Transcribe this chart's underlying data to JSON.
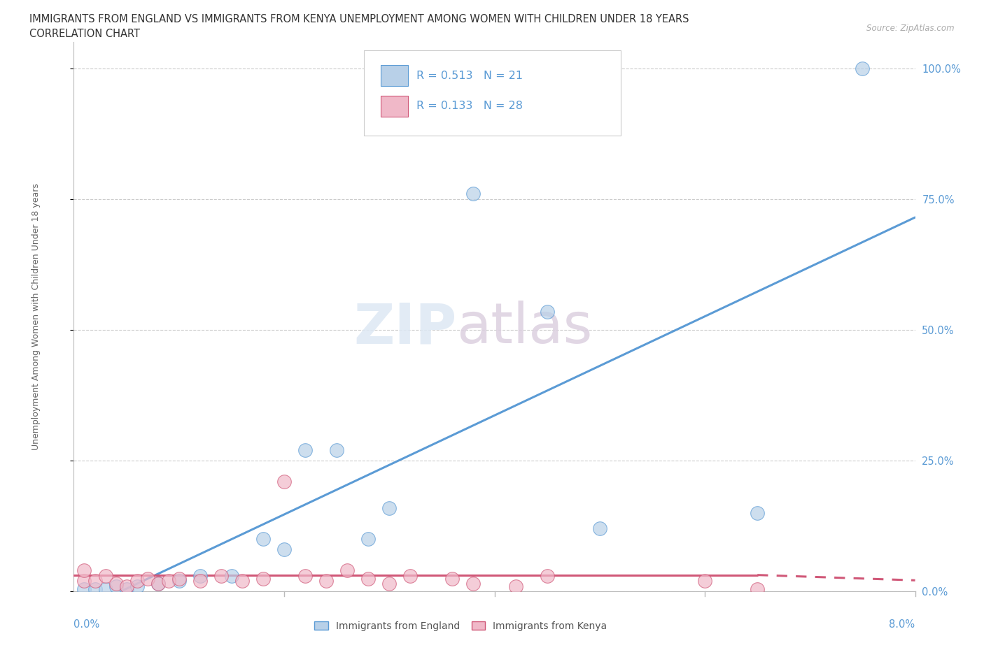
{
  "title_line1": "IMMIGRANTS FROM ENGLAND VS IMMIGRANTS FROM KENYA UNEMPLOYMENT AMONG WOMEN WITH CHILDREN UNDER 18 YEARS",
  "title_line2": "CORRELATION CHART",
  "source": "Source: ZipAtlas.com",
  "ylabel": "Unemployment Among Women with Children Under 18 years",
  "legend_label1": "Immigrants from England",
  "legend_label2": "Immigrants from Kenya",
  "R1": 0.513,
  "N1": 21,
  "R2": 0.133,
  "N2": 28,
  "color_england": "#b8d0e8",
  "color_kenya": "#f0b8c8",
  "color_england_line": "#5b9bd5",
  "color_kenya_line": "#d05878",
  "watermark_zip": "ZIP",
  "watermark_atlas": "atlas",
  "england_x": [
    0.001,
    0.002,
    0.003,
    0.004,
    0.005,
    0.006,
    0.008,
    0.01,
    0.012,
    0.015,
    0.018,
    0.02,
    0.022,
    0.025,
    0.028,
    0.03,
    0.038,
    0.045,
    0.05,
    0.065,
    0.075
  ],
  "england_y": [
    0.005,
    0.005,
    0.005,
    0.01,
    0.005,
    0.01,
    0.015,
    0.02,
    0.03,
    0.03,
    0.1,
    0.08,
    0.27,
    0.27,
    0.1,
    0.16,
    0.76,
    0.535,
    0.12,
    0.15,
    1.0
  ],
  "kenya_x": [
    0.001,
    0.001,
    0.002,
    0.003,
    0.004,
    0.005,
    0.006,
    0.007,
    0.008,
    0.009,
    0.01,
    0.012,
    0.014,
    0.016,
    0.018,
    0.02,
    0.022,
    0.024,
    0.026,
    0.028,
    0.03,
    0.032,
    0.036,
    0.038,
    0.042,
    0.045,
    0.06,
    0.065
  ],
  "kenya_y": [
    0.02,
    0.04,
    0.02,
    0.03,
    0.015,
    0.01,
    0.02,
    0.025,
    0.015,
    0.02,
    0.025,
    0.02,
    0.03,
    0.02,
    0.025,
    0.21,
    0.03,
    0.02,
    0.04,
    0.025,
    0.015,
    0.03,
    0.025,
    0.015,
    0.01,
    0.03,
    0.02,
    0.005
  ],
  "xmin": 0.0,
  "xmax": 0.08,
  "ymin": 0.0,
  "ymax": 1.05,
  "yticks": [
    0.0,
    0.25,
    0.5,
    0.75,
    1.0
  ],
  "ytick_labels": [
    "0.0%",
    "25.0%",
    "50.0%",
    "75.0%",
    "100.0%"
  ],
  "xtick_positions": [
    0.0,
    0.02,
    0.04,
    0.06,
    0.08
  ]
}
